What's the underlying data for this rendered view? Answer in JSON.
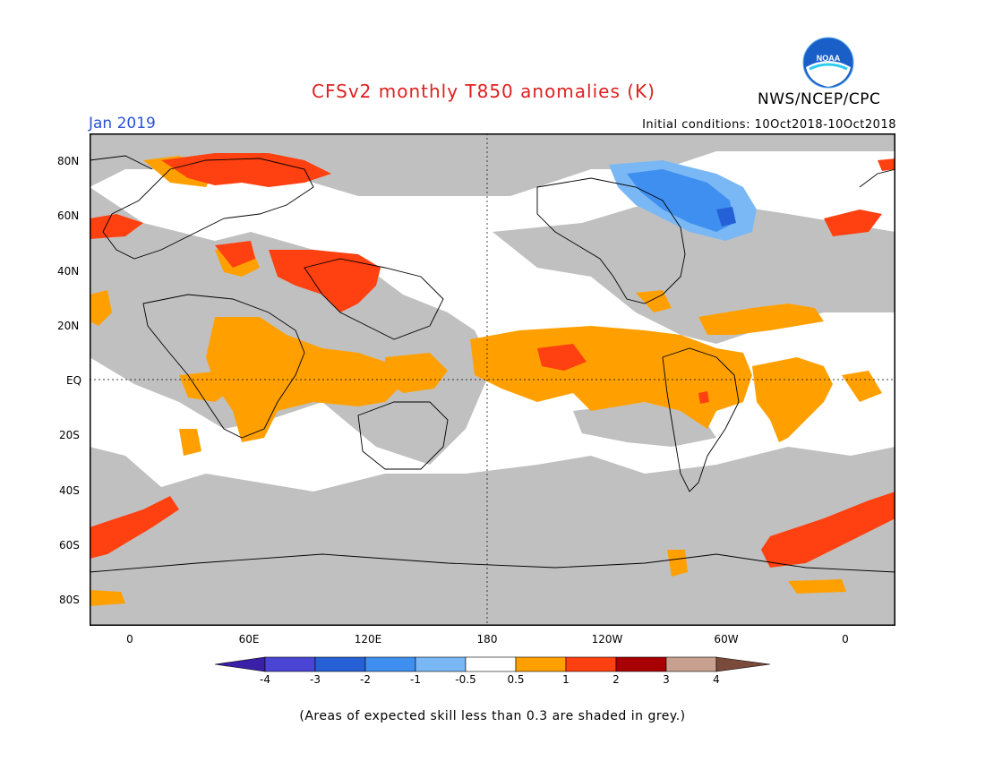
{
  "header": {
    "title": "CFSv2 monthly T850 anomalies (K)",
    "month": "Jan 2019",
    "initial_conditions": "Initial conditions: 10Oct2018-10Oct2018",
    "org": "NWS/NCEP/CPC",
    "logo_text": "NOAA"
  },
  "map": {
    "lat_labels": [
      "80N",
      "60N",
      "40N",
      "20N",
      "EQ",
      "20S",
      "40S",
      "60S",
      "80S"
    ],
    "lon_labels": [
      "0",
      "60E",
      "120E",
      "180",
      "120W",
      "60W",
      "0"
    ],
    "lon_range": [
      -20,
      380
    ],
    "lat_range": [
      -90,
      90
    ]
  },
  "colorbar": {
    "labels": [
      "-4",
      "-3",
      "-2",
      "-1",
      "-0.5",
      "0.5",
      "1",
      "2",
      "3",
      "4"
    ],
    "colors": [
      "#3a1fa8",
      "#4a45d4",
      "#2560d6",
      "#3f8ff0",
      "#7ab8f5",
      "#ffffff",
      "#ffa000",
      "#ff4010",
      "#a80000",
      "#c8a090",
      "#7a4a3a"
    ]
  },
  "colors": {
    "grey_skill": "#c0c0c0",
    "positive_weak": "#ffa000",
    "positive_strong": "#ff4010",
    "negative_weak": "#7ab8f5",
    "negative_mid": "#3f8ff0",
    "negative_strong": "#2560d6"
  },
  "footnote": "(Areas of expected skill less than 0.3 are shaded in grey.)"
}
